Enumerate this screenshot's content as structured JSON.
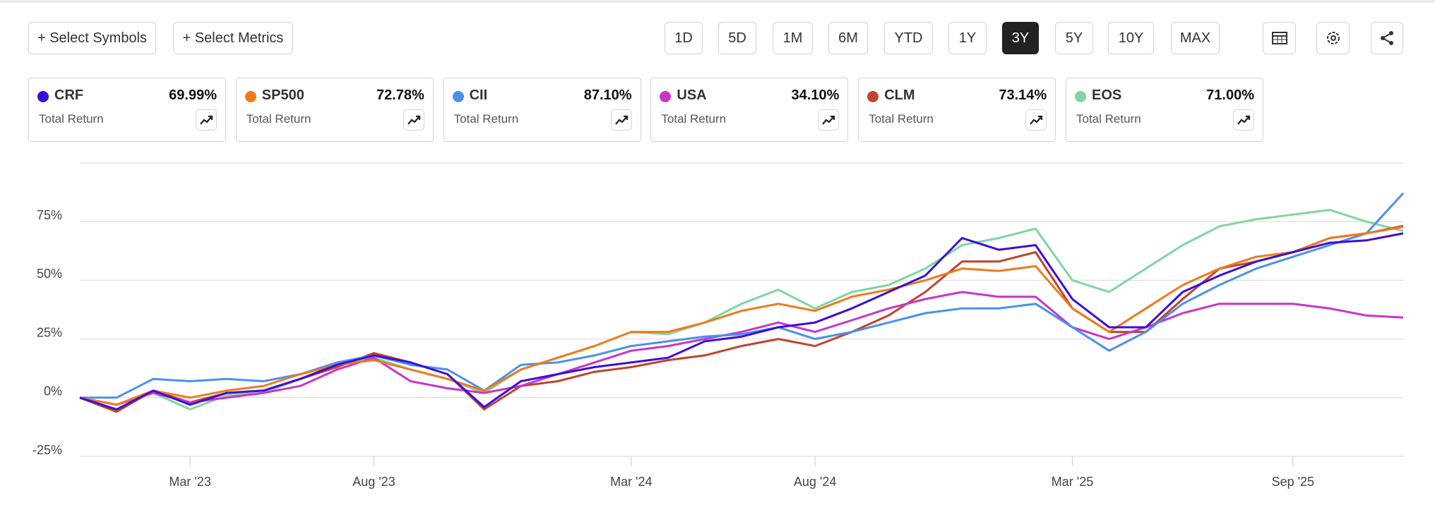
{
  "toolbar": {
    "buttons": [
      "+ Select Symbols",
      "+ Select Metrics"
    ],
    "periods": [
      "1D",
      "5D",
      "1M",
      "6M",
      "YTD",
      "1Y",
      "3Y",
      "5Y",
      "10Y",
      "MAX"
    ],
    "selected": "3Y"
  },
  "chart_data": {
    "type": "line",
    "categories": [
      null,
      null,
      null,
      "Mar '23",
      null,
      null,
      null,
      null,
      "Aug '23",
      null,
      null,
      null,
      null,
      null,
      null,
      "Mar '24",
      null,
      null,
      null,
      null,
      "Aug '24",
      null,
      null,
      null,
      null,
      null,
      null,
      "Mar '25",
      null,
      null,
      null,
      null,
      null,
      "Sep '25",
      null,
      null,
      null
    ],
    "ylim": [
      -25,
      100
    ],
    "yticks": [
      {
        "value": -25,
        "label": "-25%"
      },
      {
        "value": 0,
        "label": "0%"
      },
      {
        "value": 25,
        "label": "25%"
      },
      {
        "value": 50,
        "label": "50%"
      },
      {
        "value": 75,
        "label": "75%"
      }
    ],
    "grid": true,
    "series": [
      {
        "name": "CRF",
        "color": "#3a0fd9",
        "total_return": "69.99%",
        "metric": "Total Return",
        "values": [
          0,
          -5,
          3,
          -3,
          2,
          3,
          8,
          14,
          18,
          15,
          10,
          -4,
          7,
          10,
          13,
          15,
          17,
          24,
          26,
          30,
          32,
          38,
          45,
          52,
          68,
          63,
          65,
          42,
          30,
          30,
          45,
          52,
          58,
          62,
          66,
          67,
          69.99
        ]
      },
      {
        "name": "SP500",
        "color": "#f07a1a",
        "total_return": "72.78%",
        "metric": "Total Return",
        "values": [
          0,
          -3,
          3,
          0,
          3,
          5,
          10,
          14,
          16,
          12,
          8,
          3,
          12,
          17,
          22,
          28,
          28,
          32,
          37,
          40,
          37,
          43,
          46,
          50,
          55,
          54,
          56,
          38,
          28,
          38,
          48,
          55,
          60,
          62,
          68,
          70,
          72.78
        ]
      },
      {
        "name": "CII",
        "color": "#4a90f0",
        "total_return": "87.10%",
        "metric": "Total Return",
        "values": [
          0,
          0,
          8,
          7,
          8,
          7,
          10,
          15,
          18,
          14,
          12,
          3,
          14,
          15,
          18,
          22,
          24,
          26,
          27,
          30,
          25,
          28,
          32,
          36,
          38,
          38,
          40,
          30,
          20,
          28,
          40,
          48,
          55,
          60,
          65,
          70,
          87.1
        ]
      },
      {
        "name": "USA",
        "color": "#c935c9",
        "total_return": "34.10%",
        "metric": "Total Return",
        "values": [
          0,
          -3,
          2,
          -2,
          0,
          2,
          5,
          12,
          17,
          7,
          4,
          2,
          5,
          10,
          15,
          20,
          22,
          25,
          28,
          32,
          28,
          33,
          38,
          42,
          45,
          43,
          43,
          30,
          25,
          30,
          36,
          40,
          40,
          40,
          38,
          35,
          34.1
        ]
      },
      {
        "name": "CLM",
        "color": "#c0442c",
        "total_return": "73.14%",
        "metric": "Total Return",
        "values": [
          0,
          -6,
          3,
          -2,
          2,
          3,
          8,
          13,
          19,
          15,
          10,
          -5,
          5,
          7,
          11,
          13,
          16,
          18,
          22,
          25,
          22,
          28,
          35,
          45,
          58,
          58,
          62,
          38,
          28,
          28,
          42,
          55,
          58,
          62,
          68,
          70,
          73.14
        ]
      },
      {
        "name": "EOS",
        "color": "#7fd6a0",
        "total_return": "71.00%",
        "metric": "Total Return",
        "values": [
          0,
          -3,
          2,
          -5,
          1,
          2,
          8,
          14,
          17,
          12,
          8,
          2,
          12,
          17,
          22,
          28,
          27,
          32,
          40,
          46,
          38,
          45,
          48,
          55,
          65,
          68,
          72,
          50,
          45,
          55,
          65,
          73,
          76,
          78,
          80,
          75,
          71
        ]
      }
    ]
  }
}
